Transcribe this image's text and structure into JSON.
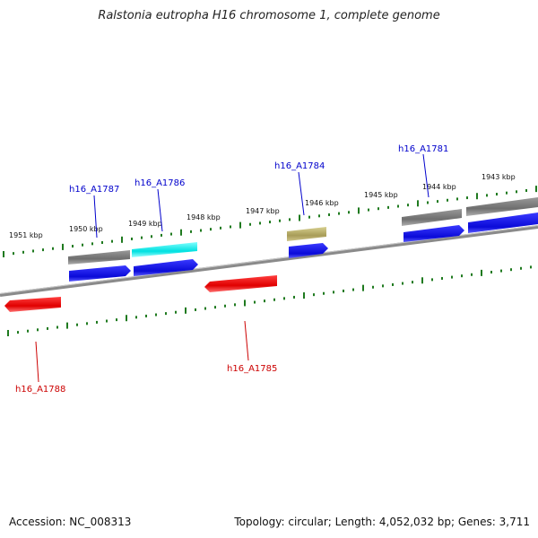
{
  "title": "Ralstonia eutropha H16 chromosome 1, complete genome",
  "accession": "Accession: NC_008313",
  "summary": "Topology: circular; Length: 4,052,032 bp; Genes: 3,711",
  "colors": {
    "backbone": "#8a8a8a",
    "ticks": "#1f7a1f",
    "forward_cds": "#1010e0",
    "reverse_cds": "#ff0000",
    "gene": "#777777",
    "highlight": "#00e5e5",
    "rna": "#b8ad6a",
    "label_forward": "#0000cc",
    "label_reverse": "#cc0000"
  },
  "kbp_labels": [
    "1951 kbp",
    "1950 kbp",
    "1949 kbp",
    "1948 kbp",
    "1947 kbp",
    "1946 kbp",
    "1945 kbp",
    "1944 kbp",
    "1943 kbp"
  ],
  "gene_labels": [
    "h16_A1787",
    "h16_A1786",
    "h16_A1784",
    "h16_A1781",
    "h16_A1788",
    "h16_A1785"
  ]
}
